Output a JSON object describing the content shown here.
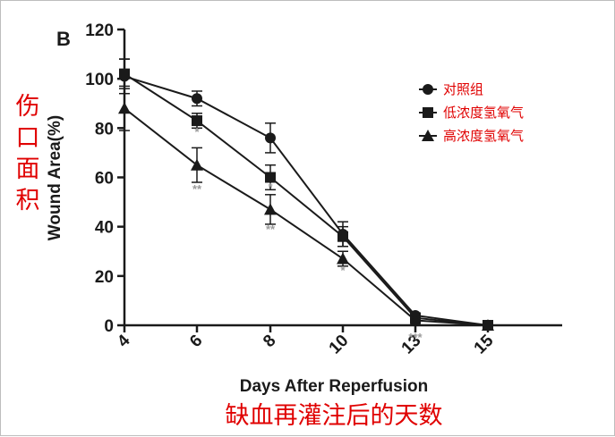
{
  "panel_label": "B",
  "chinese_ylabel": "伤口面积",
  "chinese_xlabel": "缺血再灌注后的天数",
  "colors": {
    "line": "#1a1a1a",
    "cn_text": "#e00000",
    "significance": "#9a9a9a"
  },
  "chart_data": {
    "type": "line",
    "title": "",
    "xlabel": "Days After Reperfusion",
    "ylabel": "Wound Area(%)",
    "x_ticks": [
      "4",
      "6",
      "8",
      "10",
      "13",
      "15"
    ],
    "y_ticks": [
      0,
      20,
      40,
      60,
      80,
      100,
      120
    ],
    "ylim": [
      0,
      120
    ],
    "legend_position": "top-right",
    "series": [
      {
        "name": "对照组",
        "marker": "circle",
        "values": [
          101,
          92,
          76,
          37,
          4,
          0
        ],
        "errors": [
          7,
          3,
          6,
          5,
          1,
          0
        ]
      },
      {
        "name": "低浓度氢氧气",
        "marker": "square",
        "values": [
          102,
          83,
          60,
          36,
          3,
          0
        ],
        "errors": [
          6,
          3,
          5,
          4,
          1,
          0
        ]
      },
      {
        "name": "高浓度氢氧气",
        "marker": "triangle",
        "values": [
          88,
          65,
          47,
          27,
          2,
          0
        ],
        "errors": [
          9,
          7,
          6,
          3,
          1,
          0
        ]
      }
    ],
    "annotations": [
      {
        "x": "6",
        "text": "*"
      },
      {
        "x": "6",
        "text": "**"
      },
      {
        "x": "8",
        "text": "*"
      },
      {
        "x": "8",
        "text": "**"
      },
      {
        "x": "10",
        "text": "*"
      },
      {
        "x": "13",
        "text": "***"
      }
    ]
  }
}
